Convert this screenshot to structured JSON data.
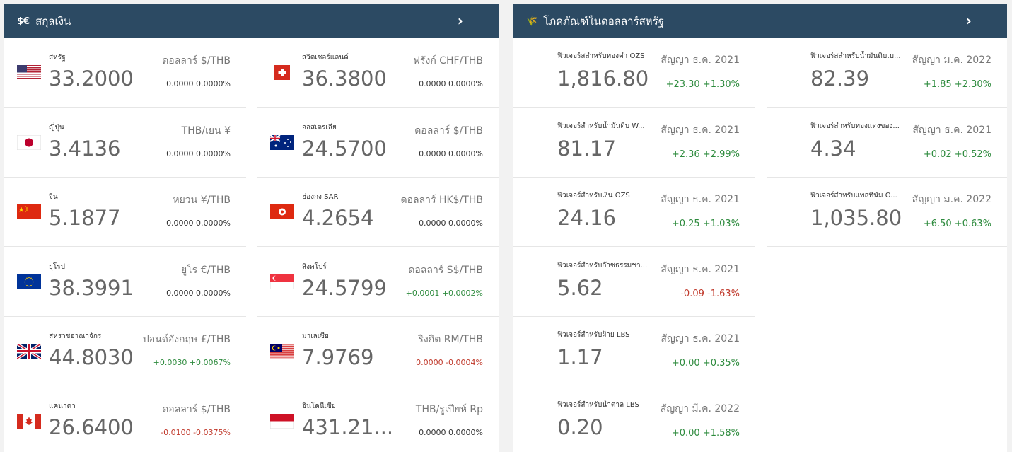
{
  "currency": {
    "title": "สกุลเงิน",
    "icon_text": "$€",
    "arrow": "›",
    "items": [
      {
        "name": "สหรัฐ",
        "pair": "ดอลลาร์ $/THB",
        "price": "33.2000",
        "change": "0.0000 0.0000%",
        "dir": "neutral",
        "flag": "us-flag-icon"
      },
      {
        "name": "สวิตเซอร์แลนด์",
        "pair": "ฟรังก์ CHF/THB",
        "price": "36.3800",
        "change": "0.0000 0.0000%",
        "dir": "neutral",
        "flag": "ch-flag-icon"
      },
      {
        "name": "ญี่ปุ่น",
        "pair": "THB/เยน ¥",
        "price": "3.4136",
        "change": "0.0000 0.0000%",
        "dir": "neutral",
        "flag": "jp-flag-icon"
      },
      {
        "name": "ออสเตรเลีย",
        "pair": "ดอลลาร์ $/THB",
        "price": "24.5700",
        "change": "0.0000 0.0000%",
        "dir": "neutral",
        "flag": "au-flag-icon"
      },
      {
        "name": "จีน",
        "pair": "หยวน ¥/THB",
        "price": "5.1877",
        "change": "0.0000 0.0000%",
        "dir": "neutral",
        "flag": "cn-flag-icon"
      },
      {
        "name": "ฮ่องกง SAR",
        "pair": "ดอลลาร์ HK$/THB",
        "price": "4.2654",
        "change": "0.0000 0.0000%",
        "dir": "neutral",
        "flag": "hk-flag-icon"
      },
      {
        "name": "ยุโรป",
        "pair": "ยูโร €/THB",
        "price": "38.3991",
        "change": "0.0000 0.0000%",
        "dir": "neutral",
        "flag": "eu-flag-icon"
      },
      {
        "name": "สิงคโปร์",
        "pair": "ดอลลาร์ S$/THB",
        "price": "24.5799",
        "change": "+0.0001 +0.0002%",
        "dir": "pos",
        "flag": "sg-flag-icon"
      },
      {
        "name": "สหราชอาณาจักร",
        "pair": "ปอนด์อังกฤษ £/THB",
        "price": "44.8030",
        "change": "+0.0030 +0.0067%",
        "dir": "pos",
        "flag": "gb-flag-icon"
      },
      {
        "name": "มาเลเซีย",
        "pair": "ริงกิต RM/THB",
        "price": "7.9769",
        "change": "0.0000 -0.0004%",
        "dir": "neg",
        "flag": "my-flag-icon"
      },
      {
        "name": "แคนาดา",
        "pair": "ดอลลาร์ $/THB",
        "price": "26.6400",
        "change": "-0.0100 -0.0375%",
        "dir": "neg",
        "flag": "ca-flag-icon"
      },
      {
        "name": "อินโดนีเซีย",
        "pair": "THB/รูเปียห์ Rp",
        "price": "431.21...",
        "change": "0.0000 0.0000%",
        "dir": "neutral",
        "flag": "id-flag-icon"
      }
    ]
  },
  "commodity": {
    "title": "โภคภัณฑ์ในดอลลาร์สหรัฐ",
    "icon_text": "🌾",
    "arrow": "›",
    "items": [
      {
        "name": "ฟิวเจอร์สสำหรับทองคำ OZS",
        "contract": "สัญญา ธ.ค. 2021",
        "price": "1,816.80",
        "change": "+23.30 +1.30%",
        "dir": "pos"
      },
      {
        "name": "ฟิวเจอร์สสำหรับน้ำมันดิบเบ...",
        "contract": "สัญญา ม.ค. 2022",
        "price": "82.39",
        "change": "+1.85 +2.30%",
        "dir": "pos"
      },
      {
        "name": "ฟิวเจอร์สำหรับน้ำมันดิบ W...",
        "contract": "สัญญา ธ.ค. 2021",
        "price": "81.17",
        "change": "+2.36 +2.99%",
        "dir": "pos"
      },
      {
        "name": "ฟิวเจอร์สำหรับทองแดงของ...",
        "contract": "สัญญา ธ.ค. 2021",
        "price": "4.34",
        "change": "+0.02 +0.52%",
        "dir": "pos"
      },
      {
        "name": "ฟิวเจอร์สำหรับเงิน OZS",
        "contract": "สัญญา ธ.ค. 2021",
        "price": "24.16",
        "change": "+0.25 +1.03%",
        "dir": "pos"
      },
      {
        "name": "ฟิวเจอร์สำหรับแพลทินัม O...",
        "contract": "สัญญา ม.ค. 2022",
        "price": "1,035.80",
        "change": "+6.50 +0.63%",
        "dir": "pos"
      },
      {
        "name": "ฟิวเจอร์สำหรับก๊าซธรรมชา...",
        "contract": "สัญญา ธ.ค. 2021",
        "price": "5.62",
        "change": "-0.09 -1.63%",
        "dir": "neg"
      },
      {
        "name": "ฟิวเจอร์สำหรับฝ้าย LBS",
        "contract": "สัญญา ธ.ค. 2021",
        "price": "1.17",
        "change": "+0.00 +0.35%",
        "dir": "pos"
      },
      {
        "name": "ฟิวเจอร์สำหรับน้ำตาล LBS",
        "contract": "สัญญา มี.ค. 2022",
        "price": "0.20",
        "change": "+0.00 +1.58%",
        "dir": "pos"
      }
    ]
  }
}
